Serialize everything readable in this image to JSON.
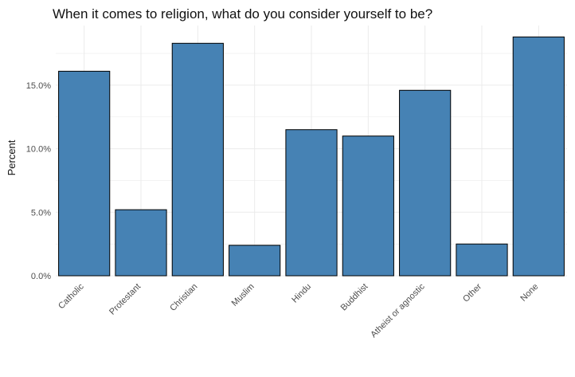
{
  "chart_data": {
    "type": "bar",
    "title": "When it comes to religion, what do you consider yourself to be?",
    "xlabel": "",
    "ylabel": "Percent",
    "categories": [
      "Catholic",
      "Protestant",
      "Christian",
      "Muslim",
      "Hindu",
      "Buddhist",
      "Atheist or agnostic",
      "Other",
      "None"
    ],
    "values": [
      16.1,
      5.2,
      18.3,
      2.4,
      11.5,
      11.0,
      14.6,
      2.5,
      18.8
    ],
    "y_ticks": [
      0,
      5,
      10,
      15
    ],
    "y_tick_labels": [
      "0.0%",
      "5.0%",
      "10.0%",
      "15.0%"
    ],
    "ylim": [
      0,
      19.7
    ],
    "grid": true,
    "bar_color": "#4682B4",
    "bar_border_color": "#000000",
    "grid_color": "#ebebeb"
  }
}
